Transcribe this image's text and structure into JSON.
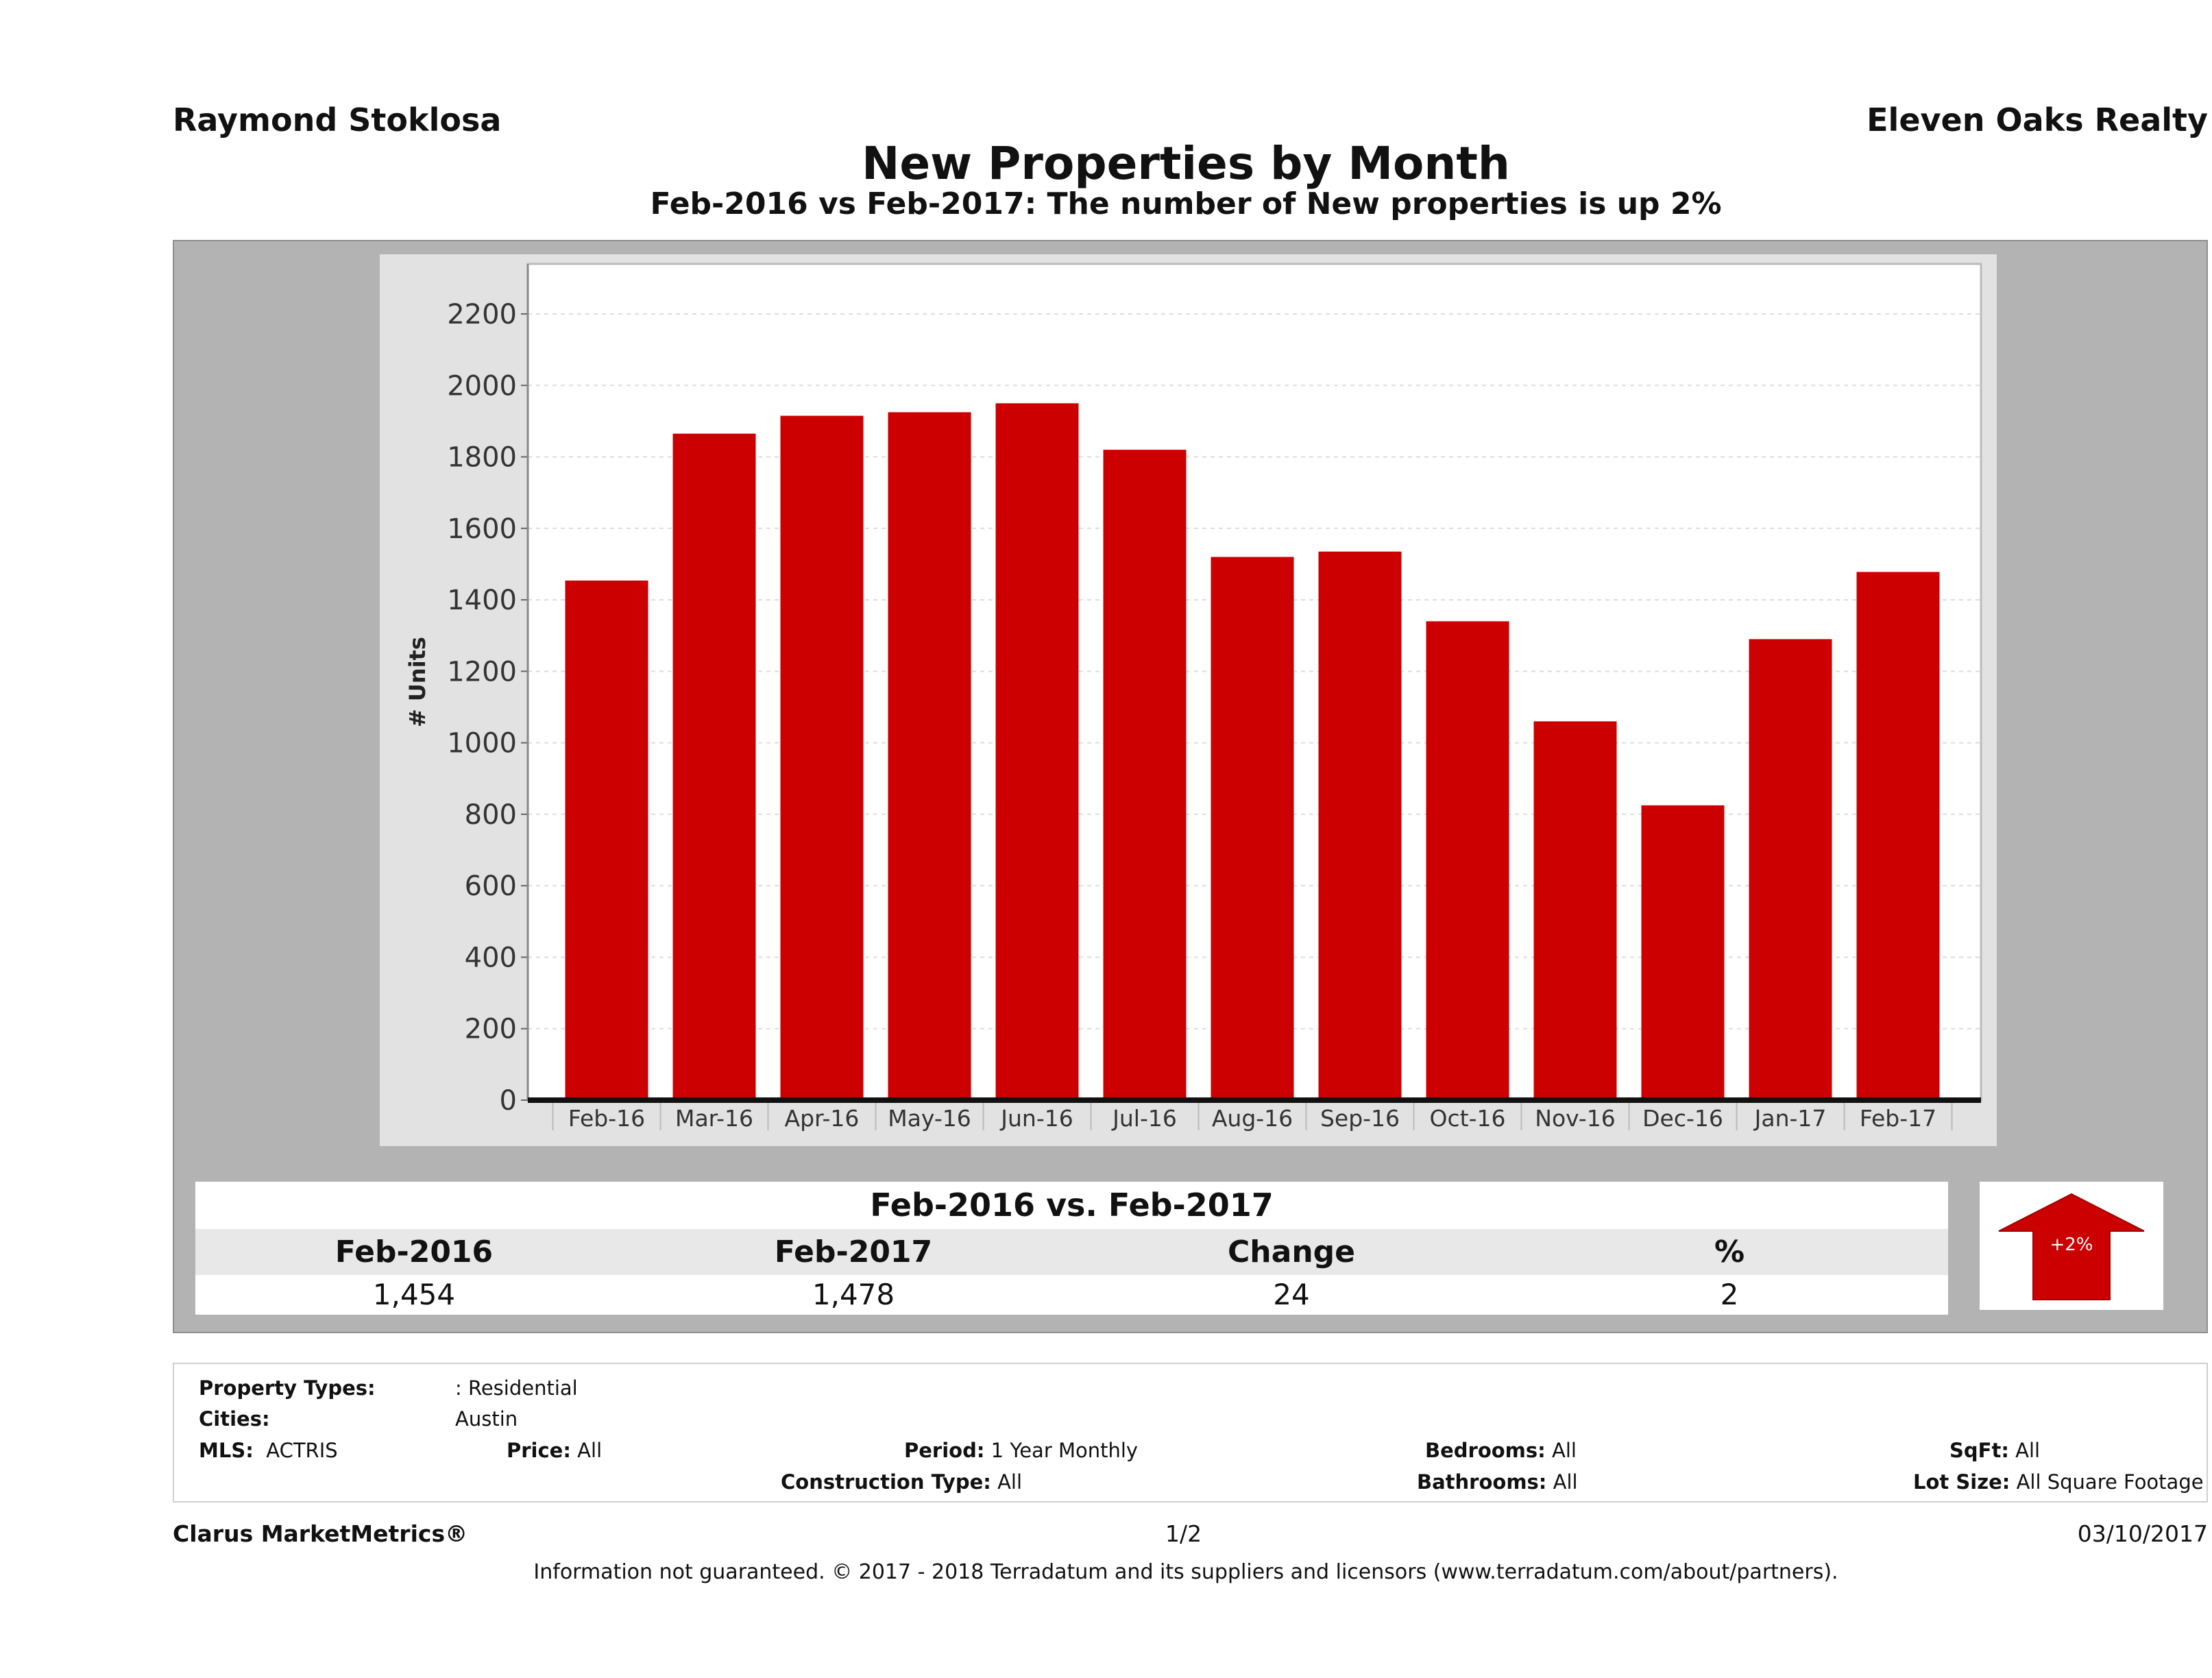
{
  "header": {
    "agent": "Raymond Stoklosa",
    "office": "Eleven Oaks Realty",
    "title": "New Properties by Month",
    "subtitle": "Feb-2016 vs Feb-2017: The number of New  properties is up 2%"
  },
  "chart_data": {
    "type": "bar",
    "categories": [
      "Feb-16",
      "Mar-16",
      "Apr-16",
      "May-16",
      "Jun-16",
      "Jul-16",
      "Aug-16",
      "Sep-16",
      "Oct-16",
      "Nov-16",
      "Dec-16",
      "Jan-17",
      "Feb-17"
    ],
    "values": [
      1454,
      1865,
      1915,
      1925,
      1950,
      1820,
      1520,
      1535,
      1340,
      1060,
      825,
      1290,
      1478
    ],
    "xlabel": "",
    "ylabel": "# Units",
    "ylim": [
      0,
      2340
    ],
    "yticks": [
      0,
      200,
      400,
      600,
      800,
      1000,
      1200,
      1400,
      1600,
      1800,
      2000,
      2200
    ],
    "grid": true,
    "bar_color": "#cc0000"
  },
  "summary": {
    "title": "Feb-2016 vs. Feb-2017",
    "headers": [
      "Feb-2016",
      "Feb-2017",
      "Change",
      "%"
    ],
    "values": [
      "1,454",
      "1,478",
      "24",
      "2"
    ],
    "badge": "+2%",
    "badge_icon": "up-arrow-icon",
    "badge_color": "#cc0000"
  },
  "filters": {
    "property_types_label": "Property Types:",
    "property_types": ": Residential",
    "cities_label": "Cities:",
    "cities": "Austin",
    "mls_label": "MLS:",
    "mls": "ACTRIS",
    "price_label": "Price:",
    "price": "All",
    "period_label": "Period:",
    "period": "1 Year Monthly",
    "bedrooms_label": "Bedrooms:",
    "bedrooms": "All",
    "sqft_label": "SqFt:",
    "sqft": "All",
    "construction_label": "Construction Type:",
    "construction": "All",
    "bathrooms_label": "Bathrooms:",
    "bathrooms": "All",
    "lotsize_label": "Lot Size:",
    "lotsize": "All Square Footage"
  },
  "footer": {
    "brand": "Clarus MarketMetrics®",
    "page": "1/2",
    "date": "03/10/2017",
    "disclaimer": "Information not guaranteed. © 2017 - 2018 Terradatum and its suppliers and licensors (www.terradatum.com/about/partners)."
  }
}
